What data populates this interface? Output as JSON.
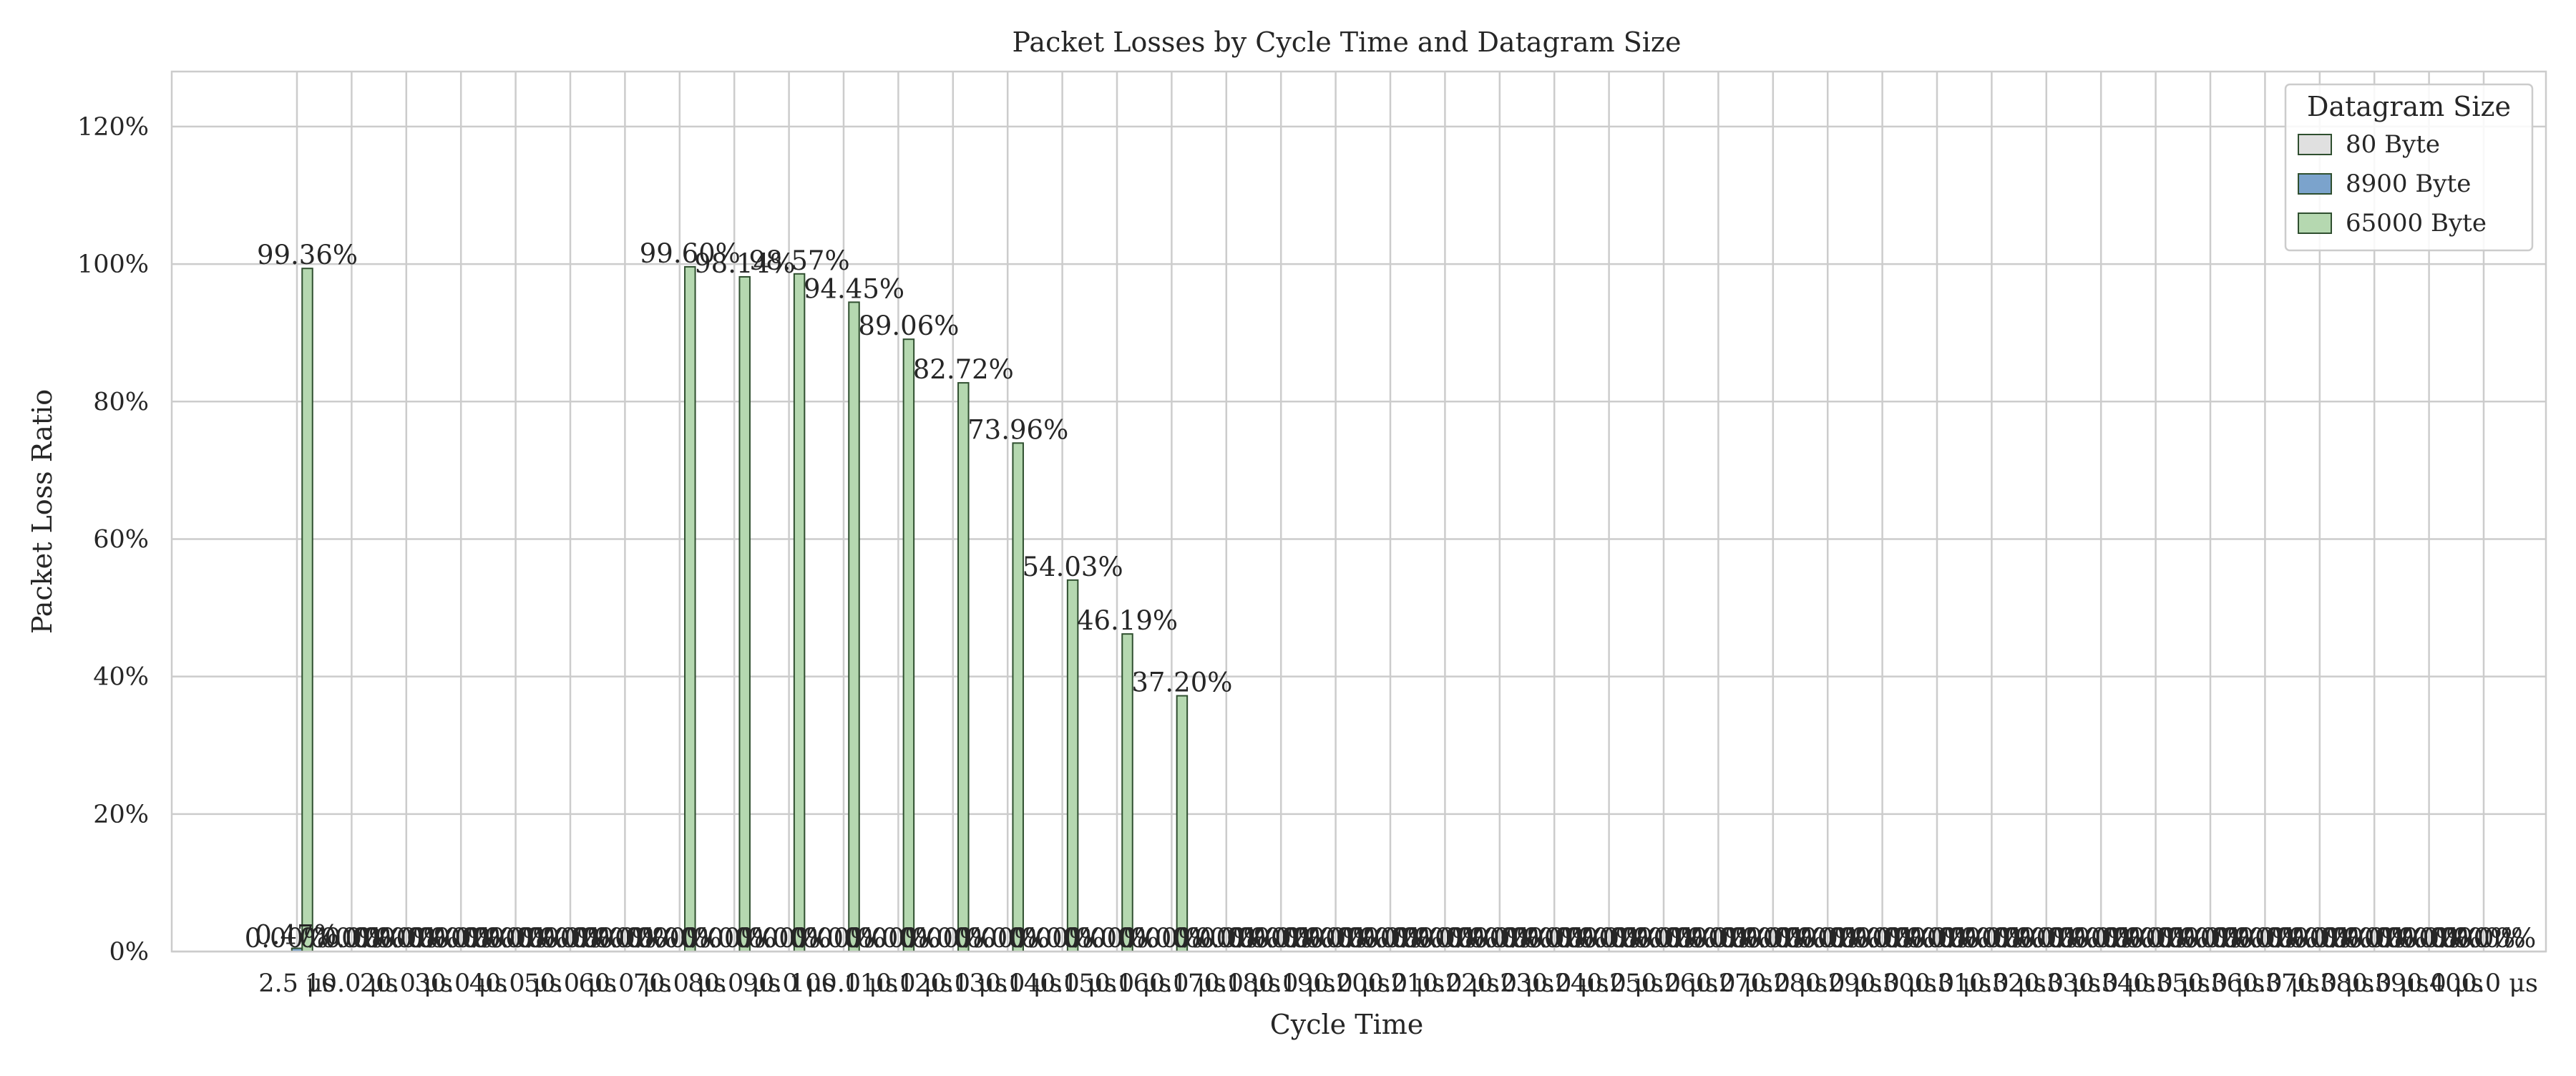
{
  "chart_data": {
    "type": "bar",
    "title": "Packet Losses by Cycle Time and Datagram Size",
    "xlabel": "Cycle Time",
    "ylabel": "Packet Loss Ratio",
    "ylim": [
      0,
      1.28
    ],
    "yticks": [
      0,
      0.2,
      0.4,
      0.6,
      0.8,
      1.0,
      1.2
    ],
    "ytick_labels": [
      "0%",
      "20%",
      "40%",
      "60%",
      "80%",
      "100%",
      "120%"
    ],
    "grid": true,
    "legend": {
      "title": "Datagram Size",
      "position": "top-right"
    },
    "categories": [
      "2.5 μs",
      "10.0 μs",
      "20.0 μs",
      "30.0 μs",
      "40.0 μs",
      "50.0 μs",
      "60.0 μs",
      "70.0 μs",
      "80.0 μs",
      "90.0 μs",
      "100.0 μs",
      "110.0 μs",
      "120.0 μs",
      "130.0 μs",
      "140.0 μs",
      "150.0 μs",
      "160.0 μs",
      "170.0 μs",
      "180.0 μs",
      "190.0 μs",
      "200.0 μs",
      "210.0 μs",
      "220.0 μs",
      "230.0 μs",
      "240.0 μs",
      "250.0 μs",
      "260.0 μs",
      "270.0 μs",
      "280.0 μs",
      "290.0 μs",
      "300.0 μs",
      "310.0 μs",
      "320.0 μs",
      "330.0 μs",
      "340.0 μs",
      "350.0 μs",
      "360.0 μs",
      "370.0 μs",
      "380.0 μs",
      "390.0 μs",
      "400.0 μs"
    ],
    "series": [
      {
        "name": "80 Byte",
        "color": "#e0e0e0",
        "values": [
          0.0,
          0.0,
          0.0,
          0.0,
          0.0,
          0.0,
          0.0,
          0.0,
          0.0,
          0.0,
          0.0,
          0.0,
          0.0,
          0.0,
          0.0,
          0.0,
          0.0,
          0.0,
          0.0,
          0.0,
          0.0,
          0.0,
          0.0,
          0.0,
          0.0,
          0.0,
          0.0,
          0.0,
          0.0,
          0.0,
          0.0,
          0.0,
          0.0,
          0.0,
          0.0,
          0.0,
          0.0,
          0.0,
          0.0,
          0.0,
          0.0
        ],
        "labels": [
          "0.00%",
          "0.00%",
          "0.00%",
          "0.00%",
          "0.00%",
          "0.00%",
          "0.00%",
          "0.00%",
          "0.00%",
          "0.00%",
          "0.00%",
          "0.00%",
          "0.00%",
          "0.00%",
          "0.00%",
          "0.00%",
          "0.00%",
          "0.00%",
          "0.00%",
          "0.00%",
          "0.00%",
          "0.00%",
          "0.00%",
          "0.00%",
          "0.00%",
          "0.00%",
          "0.00%",
          "0.00%",
          "0.00%",
          "0.00%",
          "0.00%",
          "0.00%",
          "0.00%",
          "0.00%",
          "0.00%",
          "0.00%",
          "0.00%",
          "0.00%",
          "0.00%",
          "0.00%",
          "0.00%"
        ]
      },
      {
        "name": "8900 Byte",
        "color": "#7ba3cc",
        "values": [
          0.0047,
          0.0,
          0.0,
          0.0,
          0.0,
          0.0,
          0.0,
          0.0,
          0.0,
          0.0,
          0.0,
          0.0,
          0.0,
          0.0,
          0.0,
          0.0,
          0.0,
          0.0,
          0.0,
          0.0,
          0.0,
          0.0,
          0.0,
          0.0,
          0.0,
          0.0,
          0.0,
          0.0,
          0.0,
          0.0,
          0.0,
          0.0,
          0.0,
          0.0,
          0.0,
          0.0,
          0.0,
          0.0,
          0.0,
          0.0,
          0.0
        ],
        "labels": [
          "0.47%",
          "0.00%",
          "0.00%",
          "0.00%",
          "0.00%",
          "0.00%",
          "0.00%",
          "0.00%",
          "0.00%",
          "0.00%",
          "0.00%",
          "0.00%",
          "0.00%",
          "0.00%",
          "0.00%",
          "0.00%",
          "0.00%",
          "0.00%",
          "0.00%",
          "0.00%",
          "0.00%",
          "0.00%",
          "0.00%",
          "0.00%",
          "0.00%",
          "0.00%",
          "0.00%",
          "0.00%",
          "0.00%",
          "0.00%",
          "0.00%",
          "0.00%",
          "0.00%",
          "0.00%",
          "0.00%",
          "0.00%",
          "0.00%",
          "0.00%",
          "0.00%",
          "0.00%",
          "0.00%"
        ]
      },
      {
        "name": "65000 Byte",
        "color": "#b5d8b0",
        "values": [
          0.9936,
          0.0,
          0.0,
          0.0,
          0.0,
          0.0,
          0.0,
          0.996,
          0.9814,
          0.9857,
          0.9445,
          0.8906,
          0.8272,
          0.7396,
          0.5403,
          0.4619,
          0.372,
          0.0,
          0.0,
          0.0,
          0.0,
          0.0,
          0.0,
          0.0,
          0.0,
          0.0,
          0.0,
          0.0,
          0.0,
          0.0,
          0.0,
          0.0,
          0.0,
          0.0,
          0.0,
          0.0,
          0.0,
          0.0,
          0.0,
          0.0,
          0.0
        ],
        "labels": [
          "99.36%",
          "0.00%",
          "0.00%",
          "0.00%",
          "0.00%",
          "0.00%",
          "0.00%",
          "99.60%",
          "98.14%",
          "98.57%",
          "94.45%",
          "89.06%",
          "82.72%",
          "73.96%",
          "54.03%",
          "46.19%",
          "37.20%",
          "0.00%",
          "0.00%",
          "0.00%",
          "0.00%",
          "0.00%",
          "0.00%",
          "0.00%",
          "0.00%",
          "0.00%",
          "0.00%",
          "0.00%",
          "0.00%",
          "0.00%",
          "0.00%",
          "0.00%",
          "0.00%",
          "0.00%",
          "0.00%",
          "0.00%",
          "0.00%",
          "0.00%",
          "0.00%",
          "0.00%",
          "0.00%"
        ]
      }
    ]
  },
  "style": {
    "grid_color": "#cccccc",
    "spine_color": "#cccccc",
    "bar_edge_color": "#2f4f2f",
    "text_color": "#262626"
  }
}
